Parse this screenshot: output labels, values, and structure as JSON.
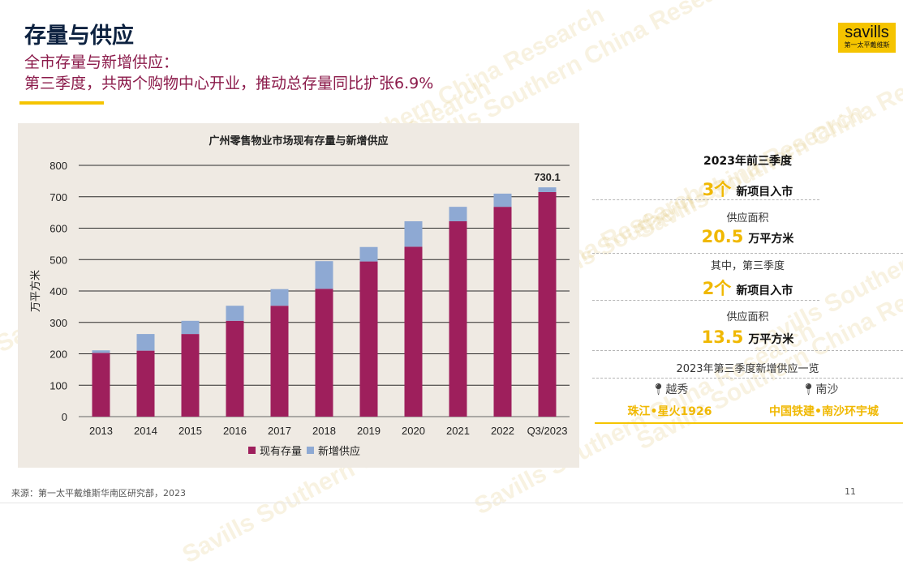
{
  "header": {
    "title": "存量与供应",
    "subtitle_line1": "全市存量与新增供应：",
    "subtitle_line2": "第三季度，共两个购物中心开业，推动总存量同比扩张6.9%"
  },
  "logo": {
    "name": "savills",
    "sub": "第一太平戴维斯"
  },
  "watermark_text": "Savills Southern China Research",
  "chart_data": {
    "type": "bar",
    "stacked": true,
    "title": "广州零售物业市场现有存量与新增供应",
    "ylabel": "万平方米",
    "xlabel": "",
    "ylim": [
      0,
      800
    ],
    "yticks": [
      0,
      100,
      200,
      300,
      400,
      500,
      600,
      700,
      800
    ],
    "grid": true,
    "legend_position": "bottom",
    "categories": [
      "2013",
      "2014",
      "2015",
      "2016",
      "2017",
      "2018",
      "2019",
      "2020",
      "2021",
      "2022",
      "Q3/2023"
    ],
    "series": [
      {
        "name": "现有存量",
        "color": "#9e1f5c",
        "values": [
          203,
          210,
          263,
          305,
          353,
          407,
          494,
          541,
          622,
          668,
          715
        ]
      },
      {
        "name": "新增供应",
        "color": "#8ea9d3",
        "values": [
          8,
          53,
          42,
          48,
          53,
          88,
          46,
          81,
          46,
          42,
          15
        ]
      }
    ],
    "annotations": [
      {
        "category": "Q3/2023",
        "label": "730.1"
      }
    ]
  },
  "stats": {
    "period1_heading": "2023年前三季度",
    "period1_count": "3个",
    "period1_count_label": "新项目入市",
    "area_label1": "供应面积",
    "period1_area": "20.5",
    "area_unit1": "万平方米",
    "period2_heading": "其中，第三季度",
    "period2_count": "2个",
    "period2_count_label": "新项目入市",
    "area_label2": "供应面积",
    "period2_area": "13.5",
    "area_unit2": "万平方米",
    "list_heading": "2023年第三季度新增供应一览",
    "locations": [
      {
        "district": "越秀",
        "project": "珠江•星火1926"
      },
      {
        "district": "南沙",
        "project": "中国铁建•南沙环宇城"
      }
    ]
  },
  "footer": {
    "source": "来源：第一太平戴维斯华南区研究部，2023",
    "page": "11"
  }
}
